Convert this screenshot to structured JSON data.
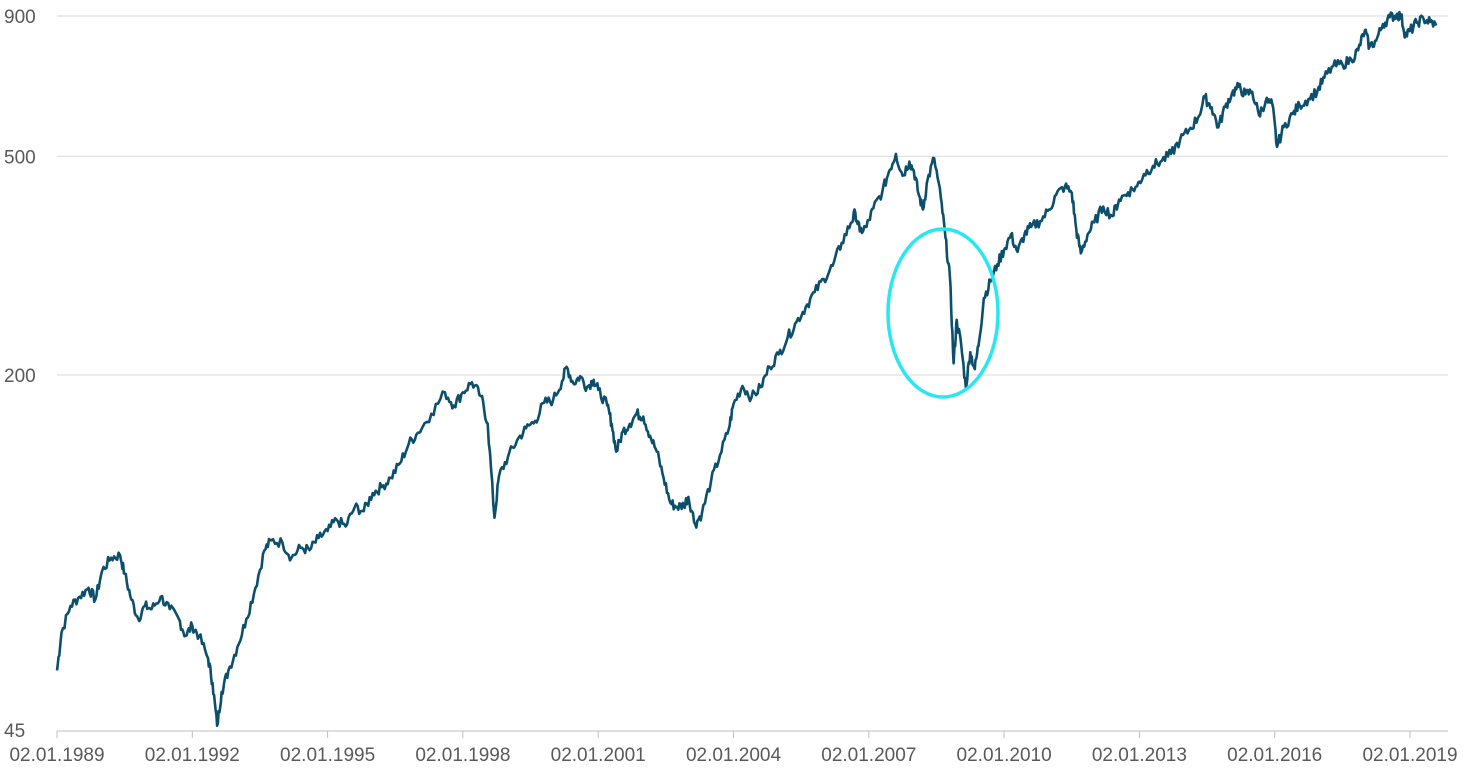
{
  "chart_data": {
    "type": "line",
    "title": "",
    "xlabel": "",
    "ylabel": "",
    "y_scale": "log",
    "ylim": [
      45,
      900
    ],
    "y_ticks": [
      45,
      200,
      500,
      900
    ],
    "x_tick_labels": [
      "02.01.1989",
      "02.01.1992",
      "02.01.1995",
      "02.01.1998",
      "02.01.2001",
      "02.01.2004",
      "02.01.2007",
      "02.01.2010",
      "02.01.2013",
      "02.01.2016",
      "02.01.2019"
    ],
    "x_ticks_year": [
      1989,
      1992,
      1995,
      1998,
      2001,
      2004,
      2007,
      2010,
      2013,
      2016,
      2019
    ],
    "xlim_year": [
      1989.0,
      2019.6
    ],
    "grid": true,
    "legend": "none",
    "series": [
      {
        "color": "#0b4f6c",
        "points": [
          [
            1989.0,
            58
          ],
          [
            1989.1,
            68
          ],
          [
            1989.3,
            76
          ],
          [
            1989.5,
            79
          ],
          [
            1989.7,
            82
          ],
          [
            1989.85,
            78
          ],
          [
            1990.0,
            88
          ],
          [
            1990.2,
            93
          ],
          [
            1990.4,
            94
          ],
          [
            1990.5,
            87
          ],
          [
            1990.65,
            78
          ],
          [
            1990.8,
            72
          ],
          [
            1990.95,
            76
          ],
          [
            1991.1,
            75
          ],
          [
            1991.3,
            79
          ],
          [
            1991.5,
            75
          ],
          [
            1991.7,
            72
          ],
          [
            1991.85,
            67
          ],
          [
            1992.0,
            70
          ],
          [
            1992.15,
            67
          ],
          [
            1992.35,
            61
          ],
          [
            1992.45,
            55
          ],
          [
            1992.55,
            46
          ],
          [
            1992.65,
            53
          ],
          [
            1992.8,
            58
          ],
          [
            1993.0,
            64
          ],
          [
            1993.2,
            72
          ],
          [
            1993.4,
            82
          ],
          [
            1993.6,
            96
          ],
          [
            1993.75,
            100
          ],
          [
            1994.0,
            99
          ],
          [
            1994.2,
            93
          ],
          [
            1994.4,
            97
          ],
          [
            1994.6,
            96
          ],
          [
            1994.8,
            101
          ],
          [
            1995.0,
            104
          ],
          [
            1995.2,
            109
          ],
          [
            1995.4,
            106
          ],
          [
            1995.6,
            115
          ],
          [
            1995.8,
            113
          ],
          [
            1996.0,
            122
          ],
          [
            1996.2,
            125
          ],
          [
            1996.4,
            130
          ],
          [
            1996.6,
            138
          ],
          [
            1996.8,
            150
          ],
          [
            1997.0,
            157
          ],
          [
            1997.3,
            170
          ],
          [
            1997.6,
            186
          ],
          [
            1997.8,
            176
          ],
          [
            1998.0,
            186
          ],
          [
            1998.2,
            194
          ],
          [
            1998.4,
            183
          ],
          [
            1998.55,
            163
          ],
          [
            1998.7,
            110
          ],
          [
            1998.8,
            131
          ],
          [
            1999.0,
            142
          ],
          [
            1999.2,
            152
          ],
          [
            1999.4,
            160
          ],
          [
            1999.6,
            165
          ],
          [
            1999.8,
            178
          ],
          [
            2000.0,
            180
          ],
          [
            2000.2,
            195
          ],
          [
            2000.3,
            207
          ],
          [
            2000.45,
            193
          ],
          [
            2000.6,
            199
          ],
          [
            2000.75,
            190
          ],
          [
            2000.9,
            196
          ],
          [
            2001.0,
            188
          ],
          [
            2001.2,
            176
          ],
          [
            2001.3,
            163
          ],
          [
            2001.4,
            145
          ],
          [
            2001.55,
            158
          ],
          [
            2001.7,
            163
          ],
          [
            2001.85,
            170
          ],
          [
            2002.0,
            168
          ],
          [
            2002.15,
            155
          ],
          [
            2002.3,
            145
          ],
          [
            2002.45,
            130
          ],
          [
            2002.6,
            117
          ],
          [
            2002.75,
            115
          ],
          [
            2002.9,
            116
          ],
          [
            2003.0,
            120
          ],
          [
            2003.15,
            107
          ],
          [
            2003.3,
            112
          ],
          [
            2003.5,
            128
          ],
          [
            2003.7,
            143
          ],
          [
            2003.9,
            160
          ],
          [
            2004.0,
            177
          ],
          [
            2004.2,
            191
          ],
          [
            2004.4,
            182
          ],
          [
            2004.6,
            190
          ],
          [
            2004.8,
            207
          ],
          [
            2005.0,
            218
          ],
          [
            2005.2,
            234
          ],
          [
            2005.4,
            250
          ],
          [
            2005.6,
            266
          ],
          [
            2005.8,
            283
          ],
          [
            2006.0,
            299
          ],
          [
            2006.2,
            316
          ],
          [
            2006.4,
            348
          ],
          [
            2006.6,
            378
          ],
          [
            2006.7,
            395
          ],
          [
            2006.8,
            365
          ],
          [
            2006.95,
            372
          ],
          [
            2007.1,
            402
          ],
          [
            2007.3,
            431
          ],
          [
            2007.45,
            470
          ],
          [
            2007.6,
            505
          ],
          [
            2007.75,
            461
          ],
          [
            2007.9,
            489
          ],
          [
            2008.0,
            470
          ],
          [
            2008.1,
            428
          ],
          [
            2008.2,
            400
          ],
          [
            2008.3,
            452
          ],
          [
            2008.45,
            496
          ],
          [
            2008.6,
            418
          ],
          [
            2008.7,
            355
          ],
          [
            2008.8,
            300
          ],
          [
            2008.88,
            210
          ],
          [
            2008.95,
            252
          ],
          [
            2009.05,
            226
          ],
          [
            2009.15,
            190
          ],
          [
            2009.25,
            220
          ],
          [
            2009.35,
            205
          ],
          [
            2009.45,
            232
          ],
          [
            2009.55,
            276
          ],
          [
            2009.7,
            296
          ],
          [
            2009.85,
            318
          ],
          [
            2010.0,
            338
          ],
          [
            2010.15,
            360
          ],
          [
            2010.3,
            335
          ],
          [
            2010.45,
            360
          ],
          [
            2010.6,
            372
          ],
          [
            2010.8,
            381
          ],
          [
            2011.0,
            400
          ],
          [
            2011.15,
            425
          ],
          [
            2011.35,
            441
          ],
          [
            2011.5,
            429
          ],
          [
            2011.6,
            368
          ],
          [
            2011.7,
            333
          ],
          [
            2011.85,
            360
          ],
          [
            2012.0,
            379
          ],
          [
            2012.2,
            405
          ],
          [
            2012.4,
            389
          ],
          [
            2012.55,
            417
          ],
          [
            2012.75,
            430
          ],
          [
            2012.95,
            441
          ],
          [
            2013.1,
            464
          ],
          [
            2013.3,
            480
          ],
          [
            2013.5,
            491
          ],
          [
            2013.7,
            505
          ],
          [
            2013.9,
            535
          ],
          [
            2014.1,
            558
          ],
          [
            2014.3,
            588
          ],
          [
            2014.45,
            640
          ],
          [
            2014.6,
            614
          ],
          [
            2014.75,
            564
          ],
          [
            2014.9,
            615
          ],
          [
            2015.05,
            650
          ],
          [
            2015.2,
            669
          ],
          [
            2015.35,
            648
          ],
          [
            2015.5,
            655
          ],
          [
            2015.65,
            595
          ],
          [
            2015.8,
            630
          ],
          [
            2015.95,
            621
          ],
          [
            2016.05,
            520
          ],
          [
            2016.2,
            565
          ],
          [
            2016.4,
            597
          ],
          [
            2016.55,
            620
          ],
          [
            2016.75,
            636
          ],
          [
            2016.95,
            658
          ],
          [
            2017.1,
            695
          ],
          [
            2017.3,
            730
          ],
          [
            2017.5,
            735
          ],
          [
            2017.7,
            750
          ],
          [
            2017.85,
            780
          ],
          [
            2018.0,
            848
          ],
          [
            2018.1,
            790
          ],
          [
            2018.25,
            812
          ],
          [
            2018.4,
            870
          ],
          [
            2018.55,
            895
          ],
          [
            2018.7,
            905
          ],
          [
            2018.8,
            900
          ],
          [
            2018.9,
            830
          ],
          [
            2019.0,
            845
          ],
          [
            2019.15,
            875
          ],
          [
            2019.3,
            890
          ],
          [
            2019.45,
            878
          ],
          [
            2019.58,
            865
          ]
        ]
      }
    ]
  }
}
